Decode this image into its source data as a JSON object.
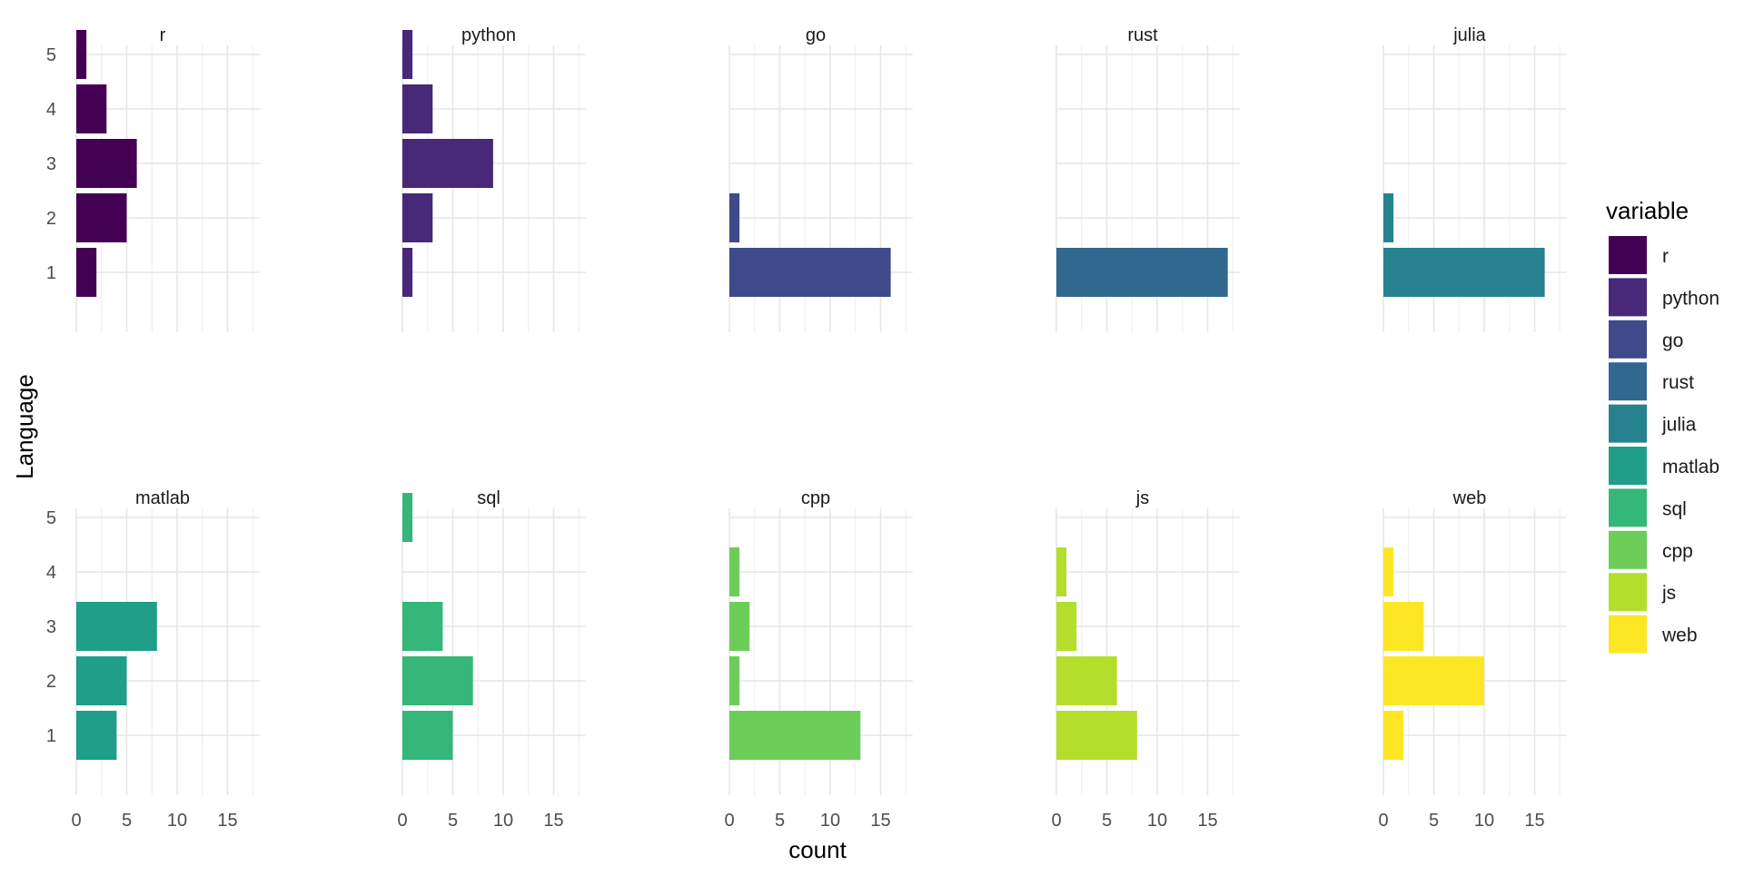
{
  "chart_data": {
    "type": "bar",
    "orientation": "horizontal",
    "facet_layout": "2 rows x 5 columns",
    "xlabel": "count",
    "ylabel": "Language",
    "xlim": [
      0,
      18
    ],
    "x_ticks": [
      0,
      5,
      10,
      15
    ],
    "y_ticks": [
      "1",
      "2",
      "3",
      "4",
      "5"
    ],
    "grid": true,
    "legend": {
      "title": "variable",
      "position": "right",
      "entries": [
        "r",
        "python",
        "go",
        "rust",
        "julia",
        "matlab",
        "sql",
        "cpp",
        "js",
        "web"
      ]
    },
    "categories": [
      "1",
      "2",
      "3",
      "4",
      "5"
    ],
    "series": [
      {
        "name": "r",
        "color": "#440154",
        "values": [
          2,
          5,
          6,
          3,
          1
        ]
      },
      {
        "name": "python",
        "color": "#482878",
        "values": [
          1,
          3,
          9,
          3,
          1
        ]
      },
      {
        "name": "go",
        "color": "#3E4A89",
        "values": [
          16,
          1,
          0,
          0,
          0
        ]
      },
      {
        "name": "rust",
        "color": "#31688E",
        "values": [
          17,
          0,
          0,
          0,
          0
        ]
      },
      {
        "name": "julia",
        "color": "#26828E",
        "values": [
          16,
          1,
          0,
          0,
          0
        ]
      },
      {
        "name": "matlab",
        "color": "#1F9E89",
        "values": [
          4,
          5,
          8,
          0,
          0
        ]
      },
      {
        "name": "sql",
        "color": "#35B779",
        "values": [
          5,
          7,
          4,
          0,
          1
        ]
      },
      {
        "name": "cpp",
        "color": "#6DCD59",
        "values": [
          13,
          1,
          2,
          1,
          0
        ]
      },
      {
        "name": "js",
        "color": "#B4DE2C",
        "values": [
          8,
          6,
          2,
          1,
          0
        ]
      },
      {
        "name": "web",
        "color": "#FDE725",
        "values": [
          2,
          10,
          4,
          1,
          0
        ]
      }
    ]
  }
}
